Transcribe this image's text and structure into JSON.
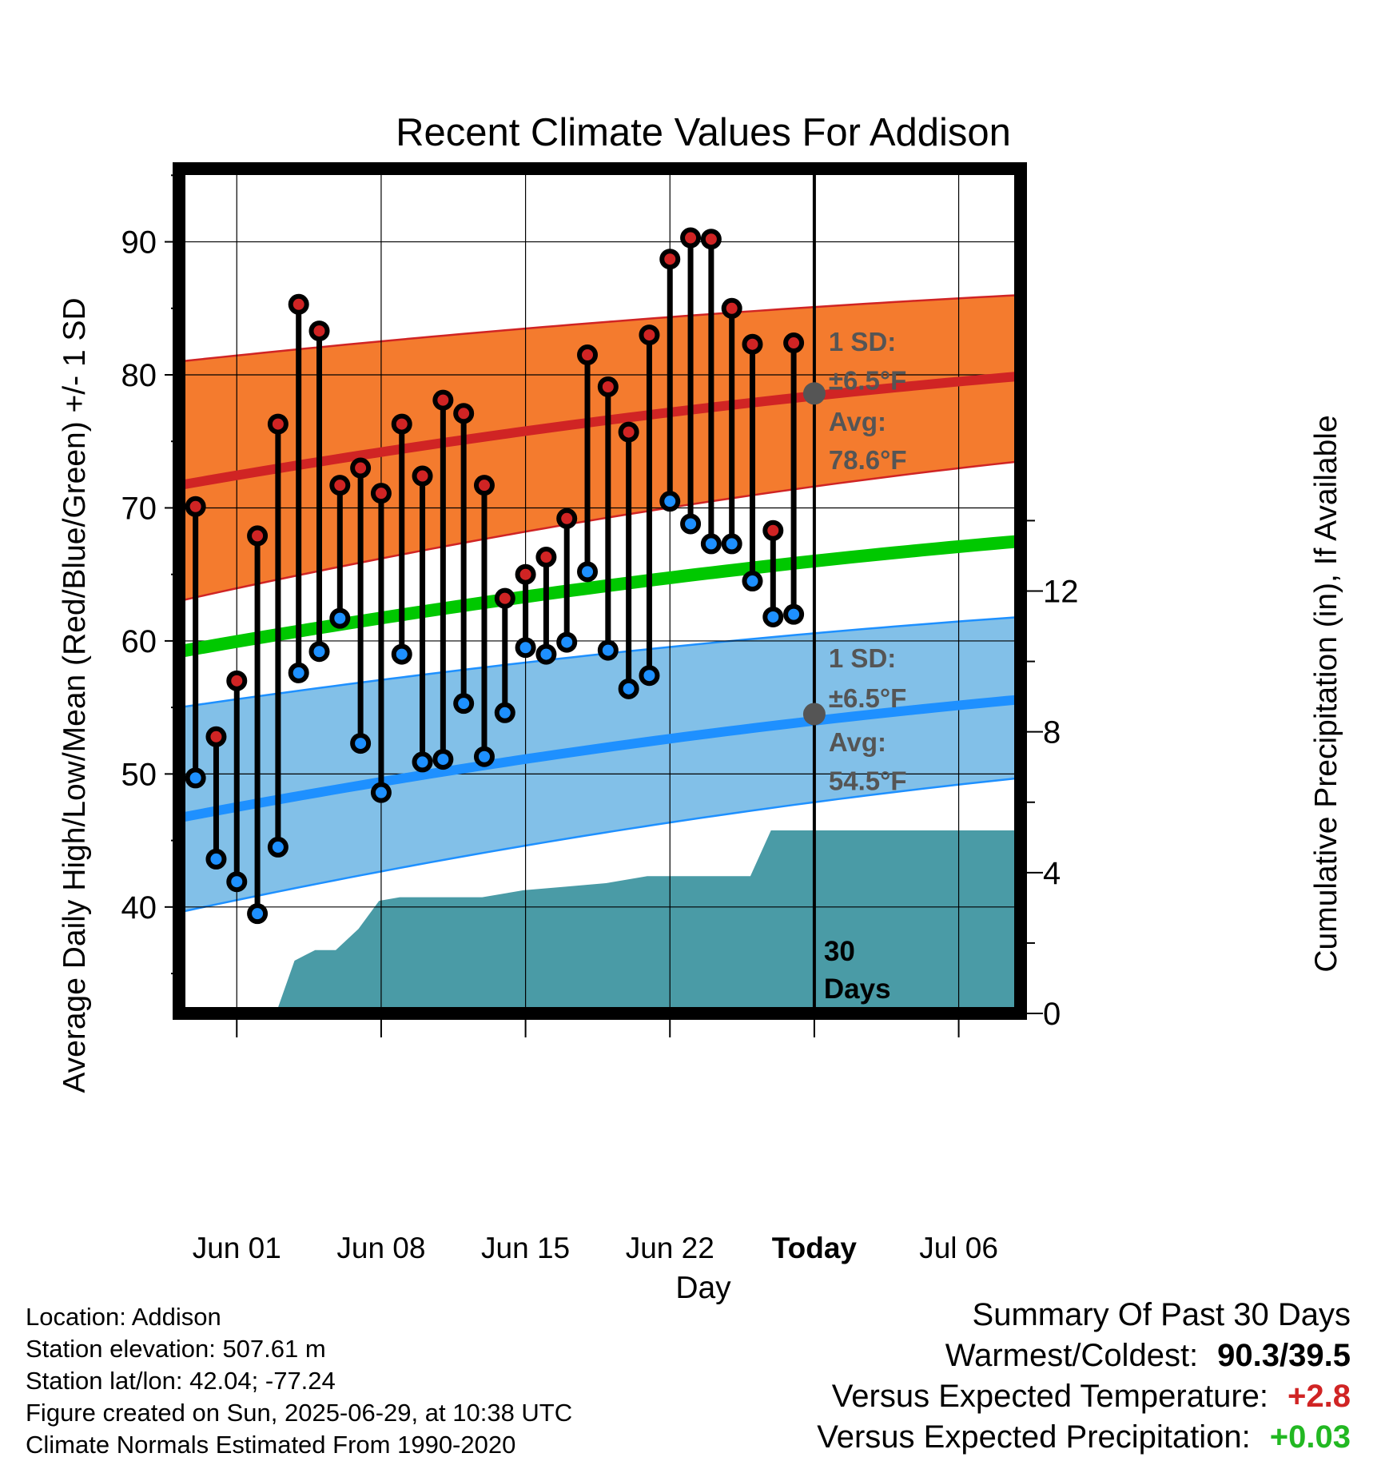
{
  "chart_data": {
    "type": "line",
    "title": "Recent Climate Values For Addison",
    "xlabel": "Day",
    "ylabel": "Average Daily High/Low/Mean (Red/Blue/Green) +/- 1 SD",
    "y2label": "Cumulative Precipitation (in), If Available",
    "x_ticks": [
      "Jun 01",
      "Jun 08",
      "Jun 15",
      "Jun 22",
      "Today",
      "Jul 06"
    ],
    "y_ticks": [
      40,
      50,
      60,
      70,
      80,
      90
    ],
    "y2_ticks": [
      0,
      4,
      8,
      12
    ],
    "ylim": [
      32,
      95.5
    ],
    "y2lim": [
      0,
      24
    ],
    "xlim_days_from_jun01": [
      -2.8,
      38.0
    ],
    "x_units": "days relative to Jun 01 (Today = Jun 29)",
    "daily_days": [
      -2,
      -1,
      0,
      1,
      2,
      3,
      4,
      5,
      6,
      7,
      8,
      9,
      10,
      11,
      12,
      13,
      14,
      15,
      16,
      17,
      18,
      19,
      20,
      21,
      22,
      23,
      24,
      25,
      26,
      27
    ],
    "daily_high": [
      70.1,
      52.8,
      57.0,
      67.9,
      76.3,
      85.3,
      83.3,
      71.7,
      73.0,
      71.1,
      76.3,
      72.4,
      78.1,
      77.1,
      71.7,
      63.2,
      65.0,
      66.3,
      69.2,
      81.5,
      79.1,
      75.7,
      83.0,
      88.7,
      90.3,
      90.2,
      85.0,
      82.3,
      68.3,
      82.4
    ],
    "daily_low": [
      49.7,
      43.6,
      41.9,
      39.5,
      44.5,
      57.6,
      59.2,
      61.7,
      52.3,
      48.6,
      59.0,
      50.9,
      51.1,
      55.3,
      51.3,
      54.6,
      59.5,
      59.0,
      59.9,
      65.2,
      59.3,
      56.4,
      57.4,
      70.5,
      68.8,
      67.3,
      67.3,
      64.5,
      61.8,
      62.0
    ],
    "normals_days": [
      -2.8,
      38.0
    ],
    "normal_high_avg": [
      71.7,
      79.9
    ],
    "normal_high_sd_upper": [
      81.0,
      86.0
    ],
    "normal_high_sd_lower": [
      63.0,
      73.5
    ],
    "normal_low_avg": [
      46.7,
      55.6
    ],
    "normal_low_sd_upper": [
      55.0,
      61.8
    ],
    "normal_low_sd_lower": [
      39.6,
      49.7
    ],
    "normal_mean": [
      59.2,
      67.5
    ],
    "precip_cumulative": {
      "days": [
        1.9,
        2.8,
        3.8,
        4.8,
        5.9,
        6.9,
        7.9,
        8.9,
        9.9,
        11.9,
        13.9,
        15.9,
        17.9,
        18.9,
        19.9,
        21.9,
        22.9,
        23.9,
        24.9,
        25.9,
        38.0
      ],
      "values": [
        0.0,
        1.5,
        1.8,
        1.8,
        2.4,
        3.2,
        3.3,
        3.3,
        3.3,
        3.3,
        3.5,
        3.6,
        3.7,
        3.8,
        3.9,
        3.9,
        3.9,
        3.9,
        3.9,
        5.2,
        5.2
      ]
    },
    "annotations": {
      "high_sd_line1": "1 SD:",
      "high_sd_line2": "±6.5°F",
      "high_avg_line1": "Avg:",
      "high_avg_line2": "78.6°F",
      "low_sd_line1": "1 SD:",
      "low_sd_line2": "±6.5°F",
      "low_avg_line1": "Avg:",
      "low_avg_line2": "54.5°F",
      "window_line1": "30",
      "window_line2": "Days"
    },
    "today_marker": {
      "day": 28,
      "high_avg": 78.6,
      "low_avg": 54.5
    },
    "grid": true,
    "colors": {
      "high_band": "#f47b2e",
      "high_line": "#d02424",
      "low_band": "#82c0e8",
      "low_line": "#1e90ff",
      "mean_line": "#00c800",
      "precip": "#4a9ba6",
      "high_dot": "#d02424",
      "low_dot": "#1e90ff",
      "avg_marker": "#555555",
      "warm_text": "#d02424",
      "wet_text": "#22b822"
    }
  },
  "info": {
    "location": "Location: Addison",
    "elevation": "Station elevation: 507.61 m",
    "latlon": "Station lat/lon: 42.04; -77.24",
    "created": "Figure created on Sun, 2025-06-29, at 10:38 UTC",
    "normals": "Climate Normals Estimated From 1990-2020"
  },
  "summary": {
    "title": "Summary Of Past 30 Days",
    "warm_cold_label": "Warmest/Coldest:",
    "warm_cold_value": "90.3/39.5",
    "temp_label": "Versus Expected Temperature:",
    "temp_value": "+2.8",
    "precip_label": "Versus Expected Precipitation:",
    "precip_value": "+0.03"
  }
}
